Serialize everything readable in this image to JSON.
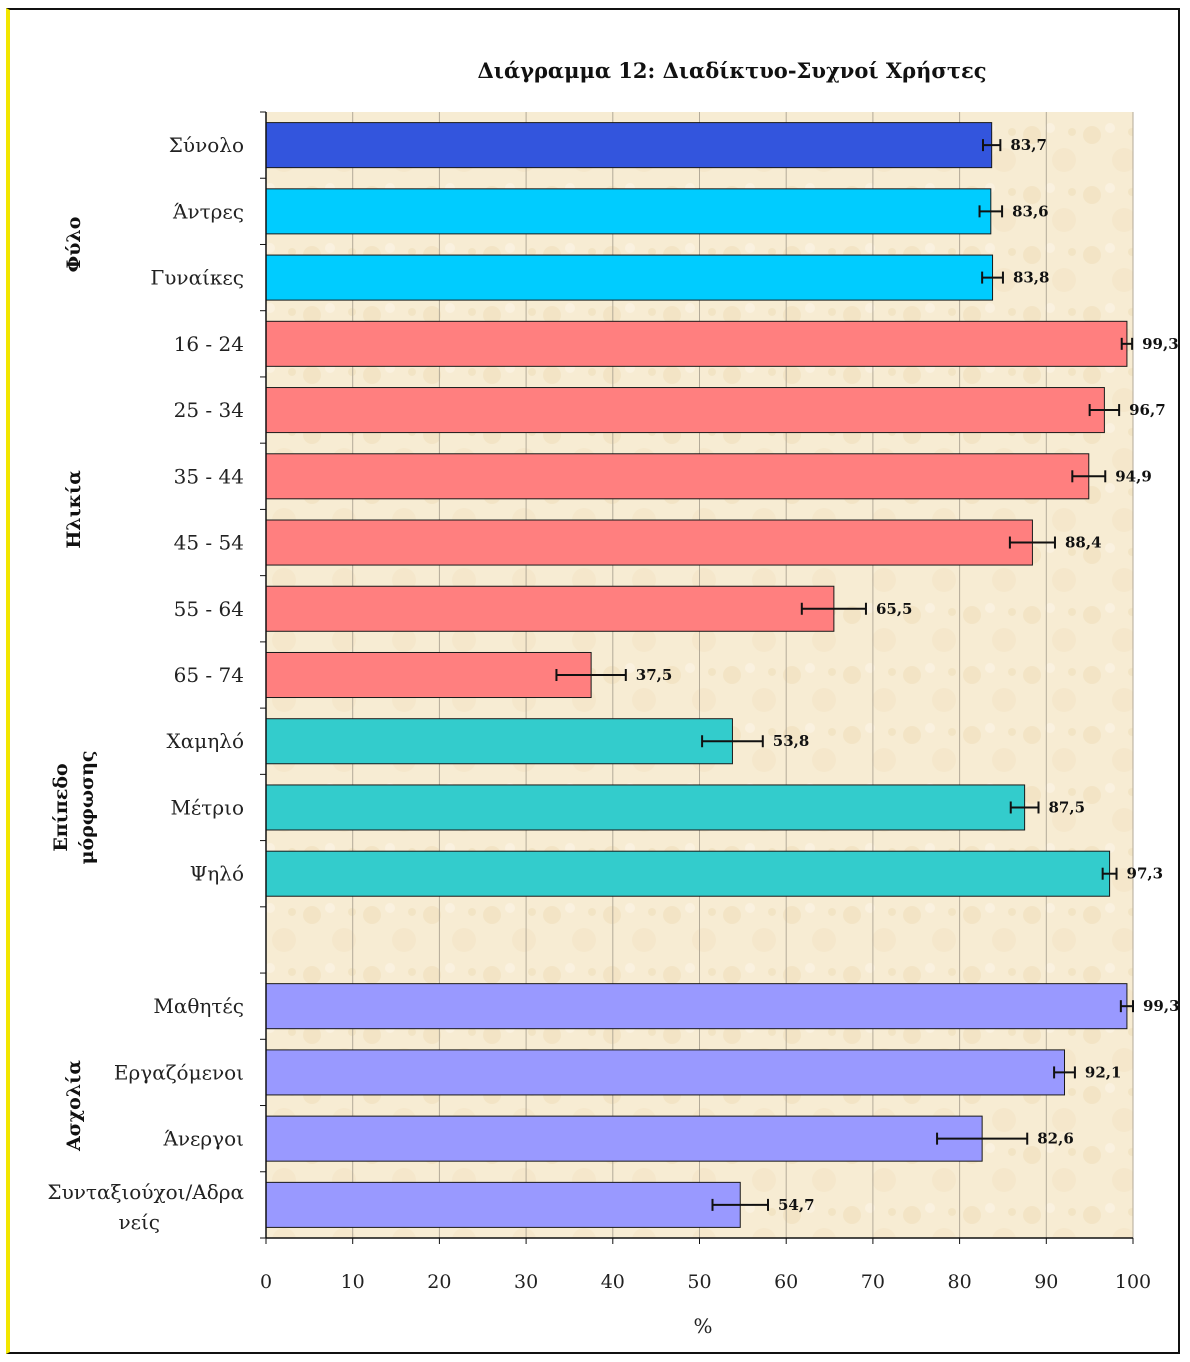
{
  "chart_data": {
    "type": "bar",
    "orientation": "horizontal",
    "title": "Διάγραμμα 12: Διαδίκτυο-Συχνοί Χρήστες",
    "xlabel": "%",
    "ylabel": "",
    "xlim": [
      0,
      100
    ],
    "x_ticks": [
      "0",
      "10",
      "20",
      "30",
      "40",
      "50",
      "60",
      "70",
      "80",
      "90",
      "100"
    ],
    "grid": "vertical",
    "colors": {
      "total": "#3355dd",
      "gender": "#00ccff",
      "age": "#ff7f7f",
      "education": "#33cccc",
      "occupation": "#9999ff",
      "plot_background": "#f7ecd3"
    },
    "categories": [
      {
        "label": "Σύνολο",
        "value": 83.7,
        "value_label": "83,7",
        "err": 1.0,
        "color_key": "total"
      },
      {
        "label": "Άντρες",
        "value": 83.6,
        "value_label": "83,6",
        "err": 1.3,
        "color_key": "gender"
      },
      {
        "label": "Γυναίκες",
        "value": 83.8,
        "value_label": "83,8",
        "err": 1.2,
        "color_key": "gender"
      },
      {
        "label": "16 - 24",
        "value": 99.3,
        "value_label": "99,3",
        "err": 0.6,
        "color_key": "age"
      },
      {
        "label": "25 - 34",
        "value": 96.7,
        "value_label": "96,7",
        "err": 1.7,
        "color_key": "age"
      },
      {
        "label": "35 - 44",
        "value": 94.9,
        "value_label": "94,9",
        "err": 1.9,
        "color_key": "age"
      },
      {
        "label": "45 - 54",
        "value": 88.4,
        "value_label": "88,4",
        "err": 2.6,
        "color_key": "age"
      },
      {
        "label": "55 - 64",
        "value": 65.5,
        "value_label": "65,5",
        "err": 3.7,
        "color_key": "age"
      },
      {
        "label": "65 - 74",
        "value": 37.5,
        "value_label": "37,5",
        "err": 4.0,
        "color_key": "age"
      },
      {
        "label": "Χαμηλό",
        "value": 53.8,
        "value_label": "53,8",
        "err": 3.5,
        "color_key": "education"
      },
      {
        "label": "Μέτριο",
        "value": 87.5,
        "value_label": "87,5",
        "err": 1.6,
        "color_key": "education"
      },
      {
        "label": "Ψηλό",
        "value": 97.3,
        "value_label": "97,3",
        "err": 0.8,
        "color_key": "education"
      },
      {
        "label": "",
        "value": null,
        "value_label": "",
        "err": null,
        "color_key": ""
      },
      {
        "label": "Μαθητές",
        "value": 99.3,
        "value_label": "99,3",
        "err": 0.7,
        "color_key": "occupation"
      },
      {
        "label": "Εργαζόμενοι",
        "value": 92.1,
        "value_label": "92,1",
        "err": 1.2,
        "color_key": "occupation"
      },
      {
        "label": "Άνεργοι",
        "value": 82.6,
        "value_label": "82,6",
        "err": 5.2,
        "color_key": "occupation"
      },
      {
        "label": "Συνταξιούχοι/Αδρανείς",
        "label_lines": [
          "Συνταξιούχοι/Αδρα",
          "νείς"
        ],
        "value": 54.7,
        "value_label": "54,7",
        "err": 3.2,
        "color_key": "occupation"
      }
    ],
    "groups": [
      {
        "label_lines": [
          "Φύλο"
        ],
        "from": 1,
        "to": 2
      },
      {
        "label_lines": [
          "Ηλικία"
        ],
        "from": 3,
        "to": 8
      },
      {
        "label_lines": [
          "Επίπεδο",
          "μόρφωσης"
        ],
        "from": 9,
        "to": 11
      },
      {
        "label_lines": [
          "Ασχολία"
        ],
        "from": 13,
        "to": 16
      }
    ]
  }
}
